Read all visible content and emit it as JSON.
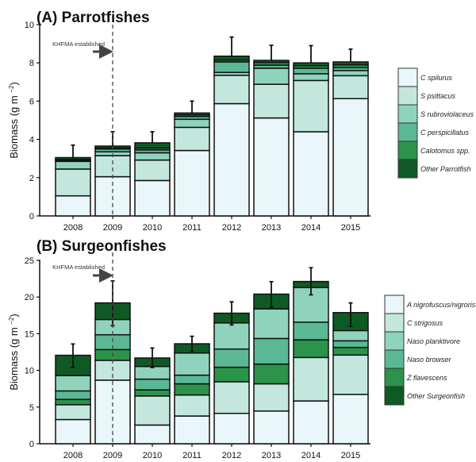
{
  "colors": [
    "#e9f6fa",
    "#c3e7dd",
    "#8fd3bd",
    "#5ab994",
    "#2b934a",
    "#0f5a24"
  ],
  "chart_data": [
    {
      "type": "bar",
      "stacked": true,
      "title": "(A) Parrotfishes",
      "ylabel": "Biomass (g m",
      "ylabel_sup": "−2",
      "ylabel_end": ")",
      "ylim": [
        0,
        10
      ],
      "yticks": [
        0,
        2,
        4,
        6,
        8,
        10
      ],
      "categories": [
        "2008",
        "2009",
        "2010",
        "2011",
        "2012",
        "2013",
        "2014",
        "2015"
      ],
      "annotation": "KHFMA established",
      "annotation_year": "2009",
      "legend_placement": "right",
      "series": [
        {
          "name": "C spilurus",
          "values": [
            1.05,
            2.05,
            1.85,
            3.42,
            5.87,
            5.12,
            4.4,
            6.13
          ]
        },
        {
          "name": "S psittacus",
          "values": [
            1.4,
            1.1,
            1.07,
            1.21,
            1.48,
            1.76,
            2.68,
            1.2
          ]
        },
        {
          "name": "S rubroviolaceus",
          "values": [
            0.4,
            0.2,
            0.38,
            0.42,
            0.15,
            0.84,
            0.35,
            0.27
          ]
        },
        {
          "name": "C perspicillatus",
          "values": [
            0.05,
            0.15,
            0.15,
            0.15,
            0.55,
            0.16,
            0.29,
            0.15
          ]
        },
        {
          "name": "Calotomus spp.",
          "values": [
            0.05,
            0.05,
            0.1,
            0.08,
            0.1,
            0.14,
            0.13,
            0.15
          ]
        },
        {
          "name": "Other Parrotfish",
          "values": [
            0.1,
            0.1,
            0.27,
            0.1,
            0.2,
            0.11,
            0.15,
            0.15
          ]
        }
      ],
      "stack_order": [
        0,
        1,
        2,
        3,
        4,
        5
      ],
      "error_upper": [
        3.7,
        4.4,
        4.4,
        6.0,
        9.35,
        8.92,
        8.9,
        8.72
      ]
    },
    {
      "type": "bar",
      "stacked": true,
      "title": "(B) Surgeonfishes",
      "ylabel": "Biomass (g m",
      "ylabel_sup": "−2",
      "ylabel_end": ")",
      "ylim": [
        0,
        25
      ],
      "yticks": [
        0,
        5,
        10,
        15,
        20,
        25
      ],
      "categories": [
        "2008",
        "2009",
        "2010",
        "2011",
        "2012",
        "2013",
        "2014",
        "2015"
      ],
      "annotation": "KHFMA established",
      "annotation_year": "2009",
      "legend_placement": "right",
      "series": [
        {
          "name": "A nigrofuscus/nigroris",
          "values": [
            3.3,
            8.67,
            2.55,
            3.78,
            4.14,
            4.46,
            5.83,
            6.73
          ]
        },
        {
          "name": "C strigosus",
          "values": [
            2.02,
            2.7,
            3.96,
            2.87,
            4.31,
            3.71,
            5.93,
            5.36
          ]
        },
        {
          "name": "Naso planktivore",
          "values": [
            2.09,
            2.08,
            1.73,
            3.02,
            3.56,
            4.03,
            4.71,
            1.4
          ]
        },
        {
          "name": "Naso browser",
          "values": [
            1.15,
            2.02,
            1.47,
            1.18,
            2.48,
            3.49,
            2.41,
            0.9
          ]
        },
        {
          "name": "Z flavescens",
          "values": [
            0.73,
            1.47,
            0.83,
            1.52,
            1.98,
            2.69,
            2.41,
            1.04
          ]
        },
        {
          "name": "Other Surgeonfish",
          "values": [
            2.77,
            2.26,
            1.15,
            1.26,
            1.33,
            2.02,
            0.83,
            2.45
          ]
        }
      ],
      "stack_order": [
        0,
        1,
        4,
        3,
        2,
        5
      ],
      "error_low": [
        10.4,
        16.1,
        10.4,
        12.6,
        16.2,
        18.6,
        20.3,
        16.0
      ],
      "error_high": [
        13.6,
        22.2,
        13.05,
        14.65,
        19.35,
        22.1,
        24.0,
        19.2
      ]
    }
  ]
}
